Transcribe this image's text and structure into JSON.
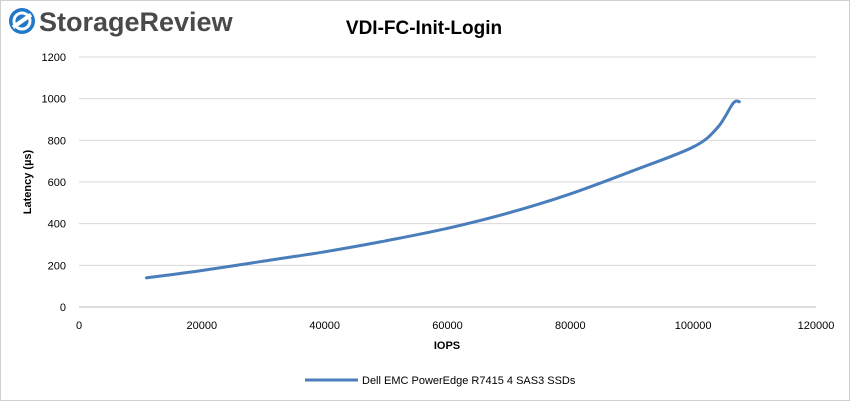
{
  "brand": {
    "name": "StorageReview",
    "logo_icon": "storagereview-logo-icon",
    "logo_color": "#1f78c8"
  },
  "chart_data": {
    "type": "line",
    "title": "VDI-FC-Init-Login",
    "xlabel": "IOPS",
    "ylabel": "Latency (µs)",
    "xlim": [
      0,
      120000
    ],
    "ylim": [
      0,
      1200
    ],
    "x_ticks": [
      0,
      20000,
      40000,
      60000,
      80000,
      100000,
      120000
    ],
    "y_ticks": [
      0,
      200,
      400,
      600,
      800,
      1000,
      1200
    ],
    "grid": "horizontal",
    "legend_position": "bottom",
    "series": [
      {
        "name": "Dell EMC PowerEdge R7415 4 SAS3 SSDs",
        "color": "#4a7ebb",
        "x": [
          11000,
          20000,
          30000,
          40000,
          50000,
          60000,
          70000,
          80000,
          90000,
          100000,
          104000,
          106500,
          107500
        ],
        "y": [
          140,
          175,
          220,
          265,
          318,
          378,
          452,
          543,
          652,
          768,
          862,
          978,
          985
        ]
      }
    ]
  }
}
